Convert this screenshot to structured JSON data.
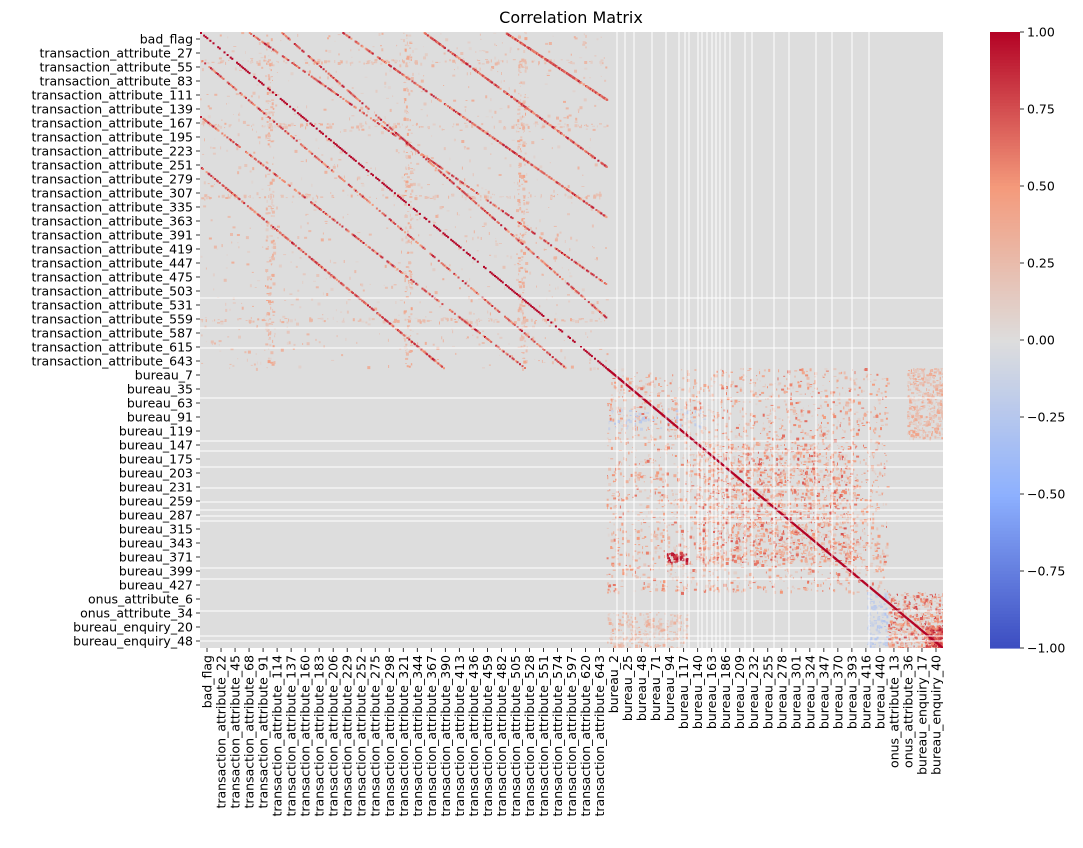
{
  "chart_data": {
    "type": "heatmap",
    "title": "Correlation Matrix",
    "xlabel": "",
    "ylabel": "",
    "colormap": "coolwarm",
    "colors": {
      "min": "#3b4cc0",
      "center": "#dddddd",
      "max": "#b40426",
      "background": "#dddddd",
      "gap_lines": "#ffffff"
    },
    "value_range": [
      -1.0,
      1.0
    ],
    "colorbar": {
      "ticks": [
        1.0,
        0.75,
        0.5,
        0.25,
        0.0,
        -0.25,
        -0.5,
        -0.75,
        -1.0
      ],
      "tick_labels": [
        "1.00",
        "0.75",
        "0.50",
        "0.25",
        "0.00",
        "−0.25",
        "−0.50",
        "−0.75",
        "−1.00"
      ]
    },
    "y_tick_labels": [
      "bad_flag",
      "transaction_attribute_27",
      "transaction_attribute_55",
      "transaction_attribute_83",
      "transaction_attribute_111",
      "transaction_attribute_139",
      "transaction_attribute_167",
      "transaction_attribute_195",
      "transaction_attribute_223",
      "transaction_attribute_251",
      "transaction_attribute_279",
      "transaction_attribute_307",
      "transaction_attribute_335",
      "transaction_attribute_363",
      "transaction_attribute_391",
      "transaction_attribute_419",
      "transaction_attribute_447",
      "transaction_attribute_475",
      "transaction_attribute_503",
      "transaction_attribute_531",
      "transaction_attribute_559",
      "transaction_attribute_587",
      "transaction_attribute_615",
      "transaction_attribute_643",
      "bureau_7",
      "bureau_35",
      "bureau_63",
      "bureau_91",
      "bureau_119",
      "bureau_147",
      "bureau_175",
      "bureau_203",
      "bureau_231",
      "bureau_259",
      "bureau_287",
      "bureau_315",
      "bureau_343",
      "bureau_371",
      "bureau_399",
      "bureau_427",
      "onus_attribute_6",
      "onus_attribute_34",
      "bureau_enquiry_20",
      "bureau_enquiry_48"
    ],
    "x_tick_labels": [
      "bad_flag",
      "transaction_attribute_22",
      "transaction_attribute_45",
      "transaction_attribute_68",
      "transaction_attribute_91",
      "transaction_attribute_114",
      "transaction_attribute_137",
      "transaction_attribute_160",
      "transaction_attribute_183",
      "transaction_attribute_206",
      "transaction_attribute_229",
      "transaction_attribute_252",
      "transaction_attribute_275",
      "transaction_attribute_298",
      "transaction_attribute_321",
      "transaction_attribute_344",
      "transaction_attribute_367",
      "transaction_attribute_390",
      "transaction_attribute_413",
      "transaction_attribute_436",
      "transaction_attribute_459",
      "transaction_attribute_482",
      "transaction_attribute_505",
      "transaction_attribute_528",
      "transaction_attribute_551",
      "transaction_attribute_574",
      "transaction_attribute_597",
      "transaction_attribute_620",
      "transaction_attribute_643",
      "bureau_2",
      "bureau_25",
      "bureau_48",
      "bureau_71",
      "bureau_94",
      "bureau_117",
      "bureau_140",
      "bureau_163",
      "bureau_186",
      "bureau_209",
      "bureau_232",
      "bureau_255",
      "bureau_278",
      "bureau_301",
      "bureau_324",
      "bureau_347",
      "bureau_370",
      "bureau_393",
      "bureau_416",
      "bureau_440",
      "onus_attribute_13",
      "onus_attribute_36",
      "bureau_enquiry_17",
      "bureau_enquiry_40"
    ],
    "blocks": {
      "y_boundaries": [
        "bureau_7",
        "onus_attribute_6",
        "bureau_enquiry_20"
      ],
      "x_boundaries": [
        "bureau_2",
        "onus_attribute_13",
        "bureau_enquiry_17"
      ]
    }
  }
}
